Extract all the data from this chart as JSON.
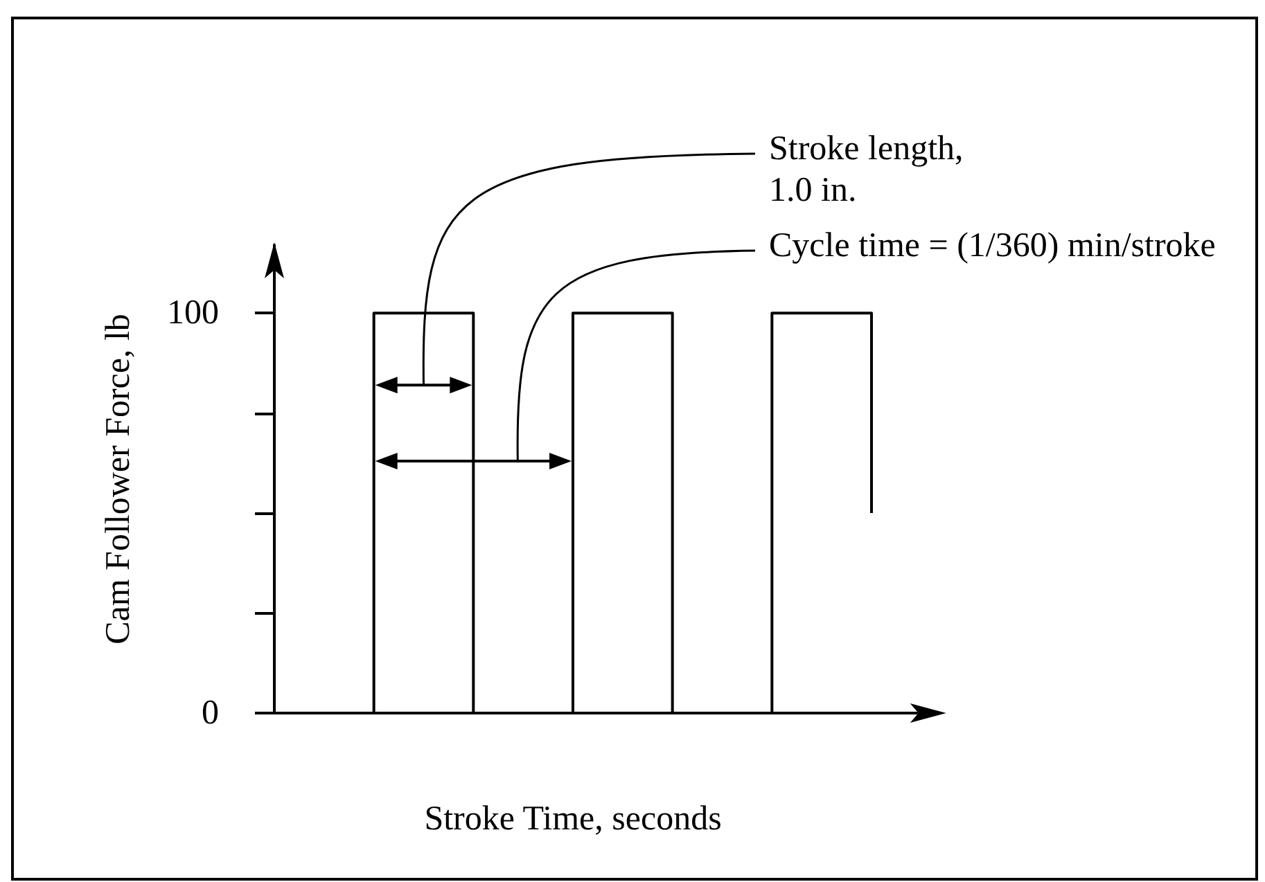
{
  "chart_data": {
    "type": "step",
    "xlabel": "Stroke Time, seconds",
    "ylabel": "Cam Follower Force, lb",
    "categories": [
      null,
      null,
      null,
      null,
      null,
      null,
      null
    ],
    "series": [
      {
        "color": "#000000",
        "values": [
          0,
          100,
          0,
          100,
          0,
          100,
          50
        ]
      }
    ],
    "ylim": [
      0,
      117
    ],
    "yticks": [
      0,
      {
        "value": 25,
        "label": null
      },
      {
        "value": 50,
        "label": null
      },
      {
        "value": 75,
        "label": null
      },
      100
    ],
    "annotations": [
      "Stroke length,\n1.0 in.",
      "Cycle time = (1/360) min/stroke"
    ],
    "grid": false,
    "marker": "none",
    "line_style": "solid"
  }
}
